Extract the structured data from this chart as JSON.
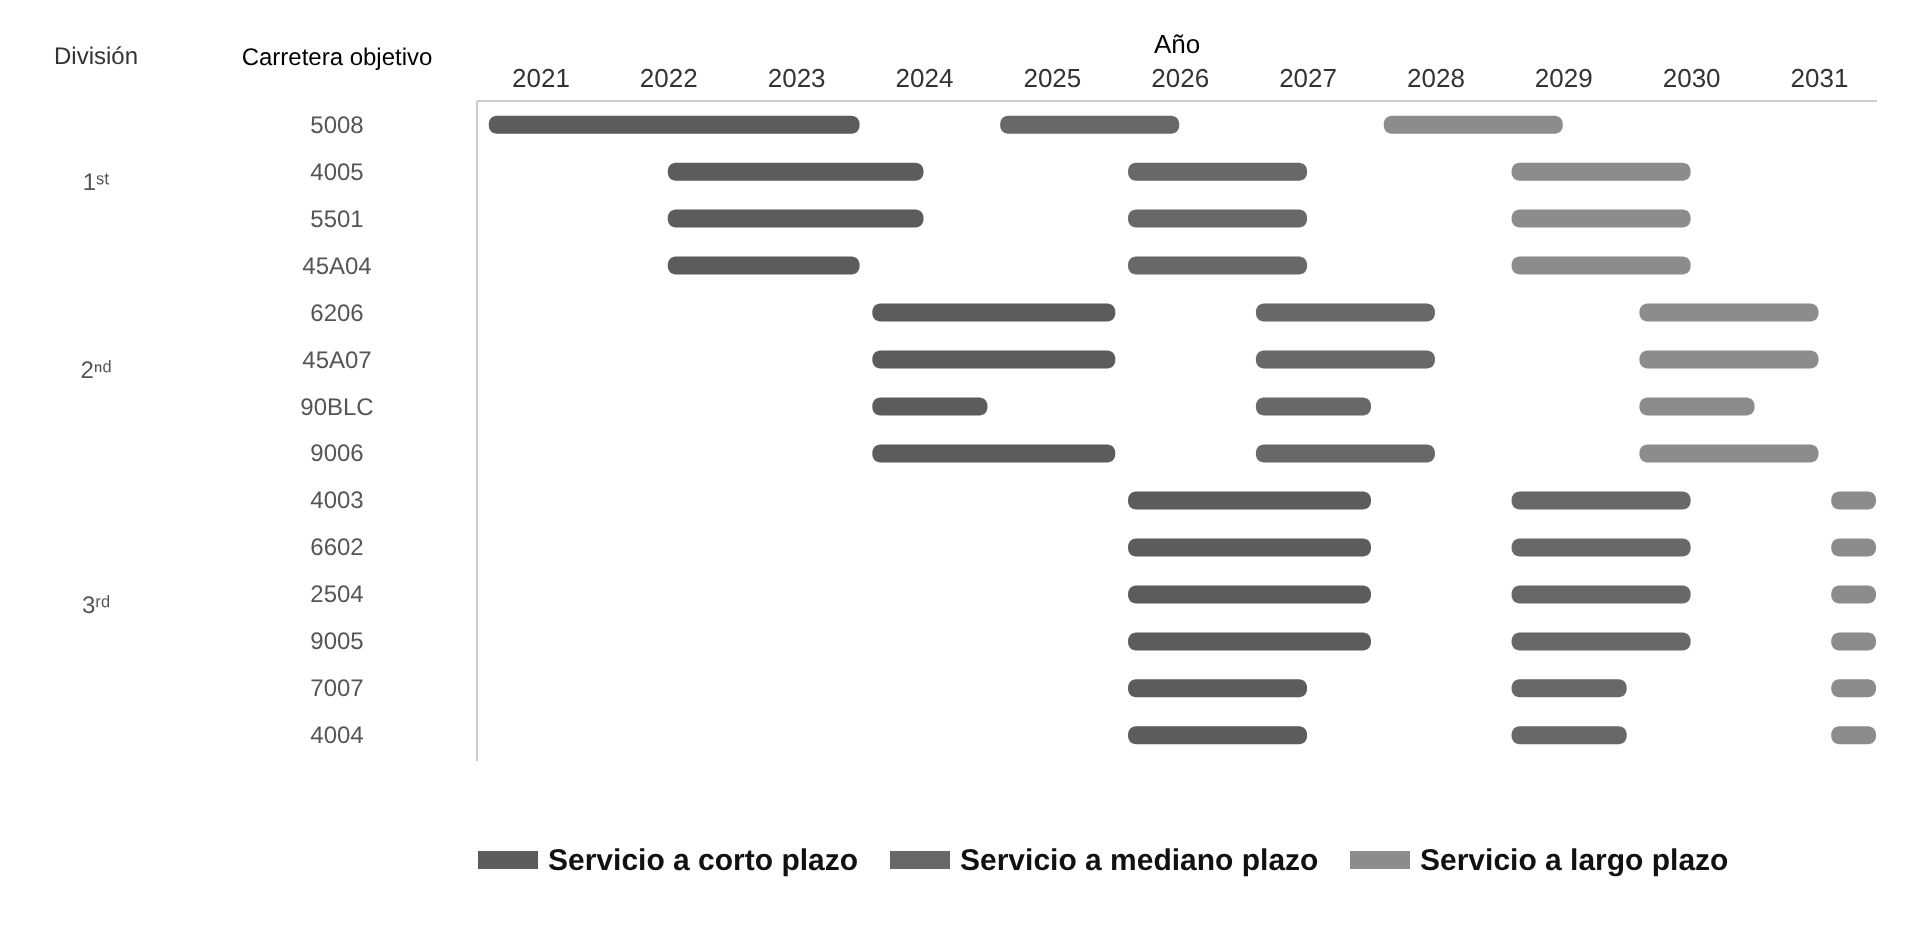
{
  "chart_data": {
    "type": "bar",
    "orientation": "horizontal",
    "xlabel": "Año",
    "ylabel": "Carretera objetivo",
    "categories": [
      "5008",
      "4005",
      "5501",
      "45A04",
      "6206",
      "45A07",
      "90BLC",
      "9006",
      "4003",
      "6602",
      "2504",
      "9005",
      "7007",
      "4004"
    ],
    "series": [
      {
        "name": "Servicio a corto plazo",
        "color": "#5c5c5c",
        "base": [
          2020.6,
          2022,
          2022,
          2022,
          2023.6,
          2023.6,
          2023.6,
          2023.6,
          2025.6,
          2025.6,
          2025.6,
          2025.6,
          2025.6,
          2025.6
        ],
        "values": [
          2.9,
          2,
          2,
          1.5,
          1.9,
          1.9,
          0.9,
          1.9,
          1.9,
          1.9,
          1.9,
          1.9,
          1.4,
          1.4
        ]
      },
      {
        "name": "Servicio a mediano plazo",
        "color": "#686868",
        "base": [
          2024.6,
          2025.6,
          2025.6,
          2025.6,
          2026.6,
          2026.6,
          2026.6,
          2026.6,
          2028.6,
          2028.6,
          2028.6,
          2028.6,
          2028.6,
          2028.6
        ],
        "values": [
          1.4,
          1.4,
          1.4,
          1.4,
          1.4,
          1.4,
          0.9,
          1.4,
          1.4,
          1.4,
          1.4,
          1.4,
          0.9,
          0.9
        ]
      },
      {
        "name": "Servicio a largo plazo",
        "color": "#8c8c8c",
        "base": [
          2027.6,
          2028.6,
          2028.6,
          2028.6,
          2029.6,
          2029.6,
          2029.6,
          2029.6,
          2031.1,
          2031.1,
          2031.1,
          2031.1,
          2031.1,
          2031.1
        ],
        "values": [
          1.4,
          1.4,
          1.4,
          1.4,
          1.4,
          1.4,
          0.9,
          1.4,
          0.35,
          0.35,
          0.35,
          0.35,
          0.35,
          0.35
        ]
      }
    ],
    "xlim": [
      2020.5,
      2031.45
    ],
    "xticks": [
      2021,
      2022,
      2023,
      2024,
      2025,
      2026,
      2027,
      2028,
      2029,
      2030,
      2031
    ],
    "annotations": [
      "División",
      "1ˢᵗ",
      "2ⁿᵈ",
      "3ʳᵈ"
    ],
    "legend": "bottom"
  }
}
